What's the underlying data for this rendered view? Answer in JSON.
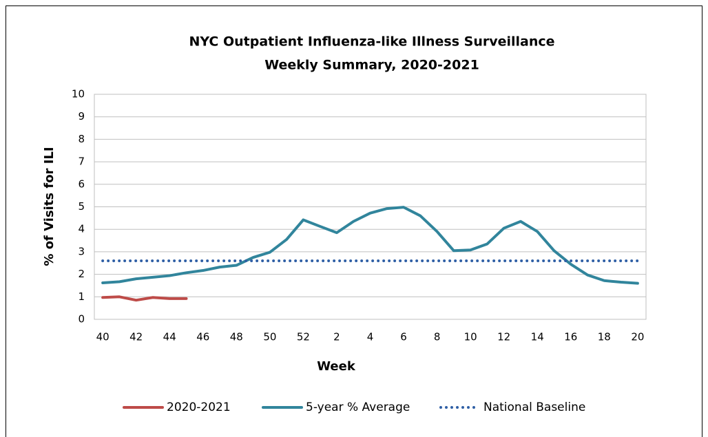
{
  "chart_data": {
    "type": "line",
    "title": "NYC Outpatient Influenza-like Illness Surveillance",
    "subtitle": "Weekly Summary, 2020-2021",
    "x_label": "Week",
    "y_label": "% of Visits for ILI",
    "categories": [
      "40",
      null,
      "42",
      null,
      "44",
      null,
      "46",
      null,
      "48",
      null,
      "50",
      null,
      "52",
      null,
      "2",
      null,
      "4",
      null,
      "6",
      null,
      "8",
      null,
      "10",
      null,
      "12",
      null,
      "14",
      null,
      "16",
      null,
      "18",
      null,
      "20"
    ],
    "series": [
      {
        "name": "2020-2021",
        "color": "#be4b48",
        "style": "solid",
        "values": [
          0.97,
          1.0,
          0.85,
          0.97,
          0.92,
          0.92,
          null,
          null,
          null,
          null,
          null,
          null,
          null,
          null,
          null,
          null,
          null,
          null,
          null,
          null,
          null,
          null,
          null,
          null,
          null,
          null,
          null,
          null,
          null,
          null,
          null,
          null,
          null
        ]
      },
      {
        "name": "5-year % Average",
        "color": "#31859c",
        "style": "solid",
        "values": [
          1.62,
          1.67,
          1.8,
          1.87,
          1.94,
          2.07,
          2.17,
          2.32,
          2.4,
          2.75,
          2.98,
          3.55,
          4.42,
          4.13,
          3.85,
          4.35,
          4.72,
          4.92,
          4.98,
          4.6,
          3.9,
          3.05,
          3.08,
          3.35,
          4.05,
          4.35,
          3.9,
          3.05,
          2.45,
          1.97,
          1.72,
          1.65,
          1.6
        ]
      },
      {
        "name": "National Baseline",
        "color": "#2f5fa5",
        "style": "dotted",
        "values": [
          2.6,
          2.6,
          2.6,
          2.6,
          2.6,
          2.6,
          2.6,
          2.6,
          2.6,
          2.6,
          2.6,
          2.6,
          2.6,
          2.6,
          2.6,
          2.6,
          2.6,
          2.6,
          2.6,
          2.6,
          2.6,
          2.6,
          2.6,
          2.6,
          2.6,
          2.6,
          2.6,
          2.6,
          2.6,
          2.6,
          2.6,
          2.6,
          2.6
        ]
      }
    ],
    "ylim": [
      0,
      10
    ],
    "yticks": [
      0,
      1,
      2,
      3,
      4,
      5,
      6,
      7,
      8,
      9,
      10
    ],
    "grid": true
  }
}
